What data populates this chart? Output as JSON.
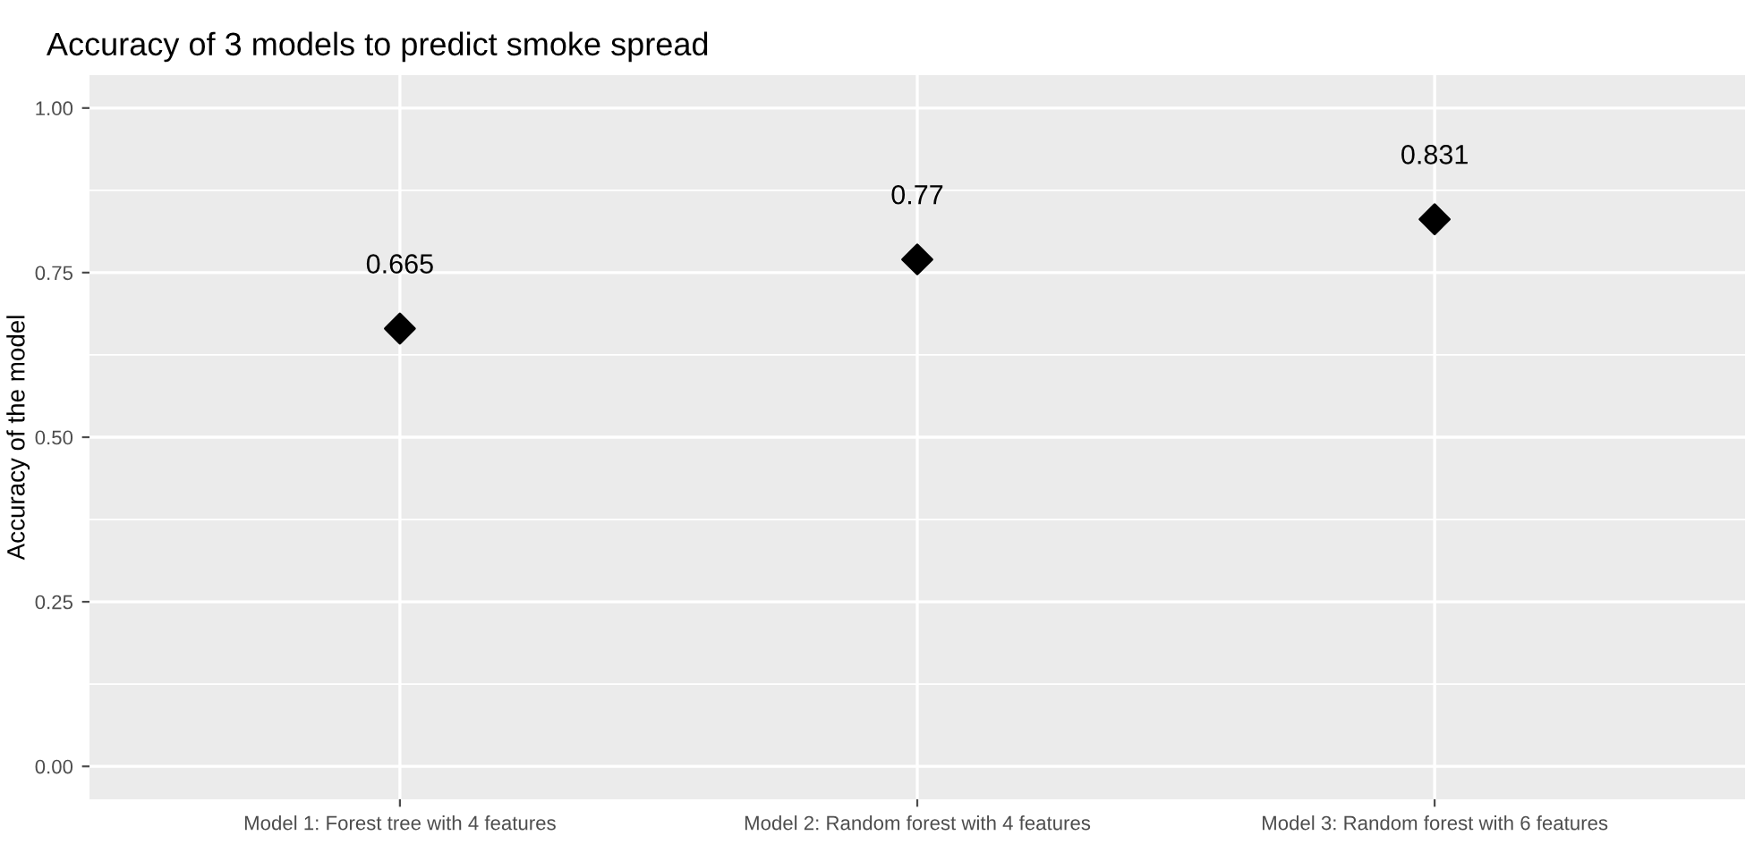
{
  "chart_data": {
    "type": "scatter",
    "title": "Accuracy of 3 models to predict smoke spread",
    "ylabel": "Accuracy of the model",
    "categories": [
      "Model 1: Forest tree with 4 features",
      "Model 2: Random forest with 4 features",
      "Model 3: Random forest with 6 features"
    ],
    "values": [
      0.665,
      0.77,
      0.831
    ],
    "color": "#000000",
    "marker": "diamond",
    "data_labels": true,
    "ylim": [
      -0.05,
      1.05
    ],
    "yticks": [
      {
        "value": 0,
        "label": "0.00"
      },
      {
        "value": 0.25,
        "label": "0.25"
      },
      {
        "value": 0.5,
        "label": "0.50"
      },
      {
        "value": 0.75,
        "label": "0.75"
      },
      {
        "value": 1,
        "label": "1.00"
      }
    ],
    "grid": true,
    "legend": false
  }
}
